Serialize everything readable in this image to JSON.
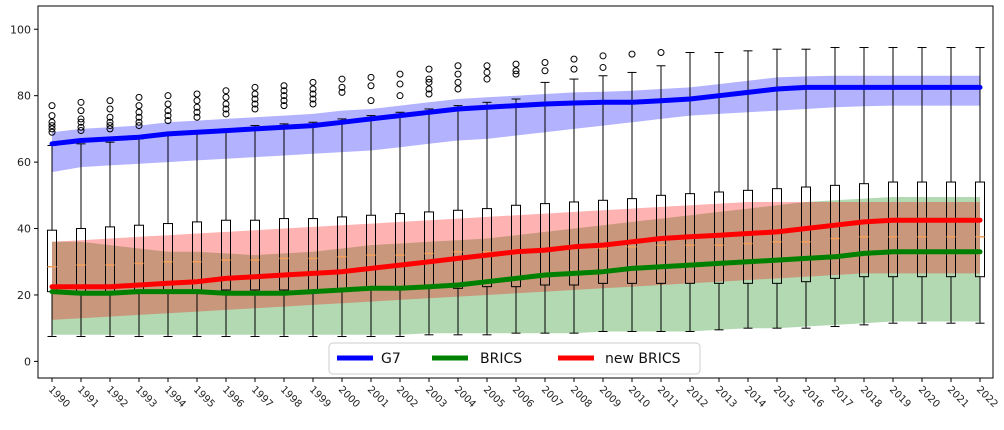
{
  "chart_data": {
    "type": "line",
    "title": "",
    "xlabel": "",
    "ylabel": "",
    "ylim": [
      -5,
      107
    ],
    "yticks": [
      0,
      20,
      40,
      60,
      80,
      100
    ],
    "x": [
      "1990",
      "1991",
      "1992",
      "1993",
      "1994",
      "1995",
      "1996",
      "1997",
      "1998",
      "1999",
      "2000",
      "2001",
      "2002",
      "2003",
      "2004",
      "2005",
      "2006",
      "2007",
      "2008",
      "2009",
      "2010",
      "2011",
      "2012",
      "2013",
      "2014",
      "2015",
      "2016",
      "2017",
      "2018",
      "2019",
      "2020",
      "2021",
      "2022"
    ],
    "grid": false,
    "legend": {
      "placement": "bottom-center"
    },
    "series": [
      {
        "name": "G7",
        "color": "#0000ff",
        "values": [
          65.5,
          66.5,
          67,
          67.5,
          68.5,
          69,
          69.5,
          70,
          70.5,
          71,
          72,
          73,
          74,
          75,
          76,
          76.5,
          77,
          77.5,
          77.8,
          78,
          78,
          78.5,
          79,
          80,
          81,
          82,
          82.5,
          82.5,
          82.5,
          82.5,
          82.5,
          82.5,
          82.5
        ],
        "band_low": [
          57,
          58.5,
          59,
          59.5,
          60,
          60.5,
          61,
          61.5,
          62,
          62.5,
          63,
          63.5,
          64.5,
          65.5,
          66.5,
          67,
          68,
          69,
          70,
          71,
          72,
          73,
          74,
          74.5,
          75,
          75.5,
          76,
          76.5,
          76.8,
          77,
          77,
          77,
          77
        ],
        "band_high": [
          69,
          70,
          70.5,
          71,
          72,
          72.5,
          73,
          73.5,
          74,
          74.5,
          75.5,
          76,
          77,
          78,
          79,
          79.5,
          80,
          80.5,
          81,
          81.2,
          81.5,
          82,
          82.5,
          83.5,
          84.5,
          85.5,
          85.8,
          86,
          86,
          86,
          86,
          86,
          86
        ]
      },
      {
        "name": "BRICS",
        "color": "#008000",
        "values": [
          21,
          20.5,
          20.5,
          21,
          21,
          21,
          20.5,
          20.5,
          20.5,
          21,
          21.5,
          22,
          22,
          22.5,
          23,
          24,
          25,
          26,
          26.5,
          27,
          28,
          28.5,
          29,
          29.5,
          30,
          30.5,
          31,
          31.5,
          32.5,
          33,
          33,
          33,
          33
        ],
        "band_low": [
          8,
          8,
          8,
          8,
          8,
          8,
          8,
          8,
          8,
          8,
          8,
          8,
          8,
          8.5,
          8.5,
          8.5,
          8.5,
          8.5,
          8.5,
          9,
          9,
          9,
          9,
          9.5,
          10,
          10,
          10.5,
          11,
          11.5,
          12,
          12,
          12,
          12
        ],
        "band_high": [
          36,
          36,
          35,
          34,
          33,
          33,
          32.5,
          32,
          32.5,
          33,
          34,
          35,
          35.5,
          36,
          36.5,
          37,
          38,
          39,
          40,
          41,
          42,
          43,
          44,
          45,
          46,
          47,
          48,
          48.5,
          49,
          49.5,
          49.5,
          49.5,
          49.5
        ]
      },
      {
        "name": "new BRICS",
        "color": "#ff0000",
        "values": [
          22.5,
          22.5,
          22.5,
          23,
          23.5,
          24,
          25,
          25.5,
          26,
          26.5,
          27,
          28,
          29,
          30,
          31,
          32,
          33,
          33.5,
          34.5,
          35,
          36,
          37,
          37.5,
          38,
          38.5,
          39,
          40,
          41,
          42,
          42.5,
          42.5,
          42.5,
          42.5
        ],
        "band_low": [
          12.5,
          13,
          13.5,
          14,
          14.5,
          15,
          15.5,
          16,
          16.5,
          17,
          17.5,
          18,
          18.5,
          19,
          19.5,
          20,
          20.5,
          21,
          21.5,
          22,
          22.5,
          23,
          23.5,
          24,
          24.5,
          25,
          25.5,
          26,
          26.5,
          26.5,
          26.5,
          26.5,
          26.5
        ],
        "band_high": [
          36,
          36.5,
          37,
          37.5,
          38,
          38.5,
          39,
          39.5,
          40,
          40.5,
          41,
          41.5,
          42,
          42.5,
          43,
          43.5,
          44,
          44.5,
          45,
          45.5,
          46,
          46.5,
          47,
          47.5,
          48,
          48,
          48,
          48,
          48,
          48,
          48,
          48,
          48
        ]
      }
    ],
    "boxplots": [
      {
        "x": "1990",
        "whisker_low": 7.5,
        "q1": 21,
        "median": 28.5,
        "q3": 39.5,
        "whisker_high": 65,
        "outliers": [
          69,
          70,
          71,
          72,
          74,
          77
        ]
      },
      {
        "x": "1991",
        "whisker_low": 7.5,
        "q1": 21,
        "median": 29,
        "q3": 40,
        "whisker_high": 65.5,
        "outliers": [
          69.5,
          70.5,
          72,
          73,
          75.5,
          78
        ]
      },
      {
        "x": "1992",
        "whisker_low": 7.5,
        "q1": 21,
        "median": 29,
        "q3": 40.5,
        "whisker_high": 66,
        "outliers": [
          70,
          71,
          72,
          73.5,
          76,
          78.5
        ]
      },
      {
        "x": "1993",
        "whisker_low": 7.5,
        "q1": 21,
        "median": 29.5,
        "q3": 41,
        "whisker_high": 67,
        "outliers": [
          71,
          72,
          73.5,
          75,
          77,
          79.5
        ]
      },
      {
        "x": "1994",
        "whisker_low": 7.5,
        "q1": 21,
        "median": 30,
        "q3": 41.5,
        "whisker_high": 68,
        "outliers": [
          72.5,
          74,
          75.5,
          77.5,
          80
        ]
      },
      {
        "x": "1995",
        "whisker_low": 7.5,
        "q1": 21.5,
        "median": 30,
        "q3": 42,
        "whisker_high": 69,
        "outliers": [
          73.5,
          75,
          76.5,
          78.5,
          80.5
        ]
      },
      {
        "x": "1996",
        "whisker_low": 7.5,
        "q1": 21.5,
        "median": 30.5,
        "q3": 42.5,
        "whisker_high": 70,
        "outliers": [
          74.5,
          76,
          77.5,
          79.5,
          81.5
        ]
      },
      {
        "x": "1997",
        "whisker_low": 7.5,
        "q1": 21.5,
        "median": 30.5,
        "q3": 42.5,
        "whisker_high": 71,
        "outliers": [
          76,
          77.5,
          79,
          80.5,
          82.5
        ]
      },
      {
        "x": "1998",
        "whisker_low": 7.5,
        "q1": 21.5,
        "median": 31,
        "q3": 43,
        "whisker_high": 71.5,
        "outliers": [
          77,
          78.5,
          80,
          81.5,
          83
        ]
      },
      {
        "x": "1999",
        "whisker_low": 7.5,
        "q1": 21.5,
        "median": 31,
        "q3": 43,
        "whisker_high": 72,
        "outliers": [
          77.5,
          79,
          80.5,
          82,
          84
        ]
      },
      {
        "x": "2000",
        "whisker_low": 7.5,
        "q1": 22,
        "median": 31.5,
        "q3": 43.5,
        "whisker_high": 73,
        "outliers": [
          81,
          82.5,
          85
        ]
      },
      {
        "x": "2001",
        "whisker_low": 7.5,
        "q1": 22,
        "median": 32,
        "q3": 44,
        "whisker_high": 74,
        "outliers": [
          78.5,
          83,
          85.5
        ]
      },
      {
        "x": "2002",
        "whisker_low": 7.5,
        "q1": 22,
        "median": 32,
        "q3": 44.5,
        "whisker_high": 75,
        "outliers": [
          80,
          83.5,
          86.5
        ]
      },
      {
        "x": "2003",
        "whisker_low": 8,
        "q1": 22,
        "median": 32.5,
        "q3": 45,
        "whisker_high": 76,
        "outliers": [
          80.5,
          82,
          84,
          85,
          88
        ]
      },
      {
        "x": "2004",
        "whisker_low": 8,
        "q1": 22,
        "median": 33,
        "q3": 45.5,
        "whisker_high": 77,
        "outliers": [
          82,
          84,
          86.5,
          89
        ]
      },
      {
        "x": "2005",
        "whisker_low": 8,
        "q1": 22.5,
        "median": 33,
        "q3": 46,
        "whisker_high": 78,
        "outliers": [
          85,
          87,
          89
        ]
      },
      {
        "x": "2006",
        "whisker_low": 8.5,
        "q1": 22.5,
        "median": 33.5,
        "q3": 47,
        "whisker_high": 79,
        "outliers": [
          86.5,
          87.5,
          89.5
        ]
      },
      {
        "x": "2007",
        "whisker_low": 8.5,
        "q1": 23,
        "median": 33.5,
        "q3": 47.5,
        "whisker_high": 84,
        "outliers": [
          87.5,
          90
        ]
      },
      {
        "x": "2008",
        "whisker_low": 8.5,
        "q1": 23,
        "median": 34,
        "q3": 48,
        "whisker_high": 85,
        "outliers": [
          88,
          91
        ]
      },
      {
        "x": "2009",
        "whisker_low": 9,
        "q1": 23.5,
        "median": 34,
        "q3": 48.5,
        "whisker_high": 86,
        "outliers": [
          88.5,
          92
        ]
      },
      {
        "x": "2010",
        "whisker_low": 9,
        "q1": 23.5,
        "median": 34.5,
        "q3": 49,
        "whisker_high": 87,
        "outliers": [
          92.5
        ]
      },
      {
        "x": "2011",
        "whisker_low": 9,
        "q1": 23.5,
        "median": 35,
        "q3": 50,
        "whisker_high": 89,
        "outliers": [
          93
        ]
      },
      {
        "x": "2012",
        "whisker_low": 9,
        "q1": 23.5,
        "median": 35,
        "q3": 50.5,
        "whisker_high": 93,
        "outliers": []
      },
      {
        "x": "2013",
        "whisker_low": 9.5,
        "q1": 23.5,
        "median": 35,
        "q3": 51,
        "whisker_high": 93,
        "outliers": []
      },
      {
        "x": "2014",
        "whisker_low": 10,
        "q1": 23.5,
        "median": 35.5,
        "q3": 51.5,
        "whisker_high": 93.5,
        "outliers": []
      },
      {
        "x": "2015",
        "whisker_low": 10,
        "q1": 23.5,
        "median": 36,
        "q3": 52,
        "whisker_high": 94,
        "outliers": []
      },
      {
        "x": "2016",
        "whisker_low": 10,
        "q1": 24,
        "median": 36,
        "q3": 52.5,
        "whisker_high": 94,
        "outliers": []
      },
      {
        "x": "2017",
        "whisker_low": 10.5,
        "q1": 25,
        "median": 37,
        "q3": 53,
        "whisker_high": 94.5,
        "outliers": []
      },
      {
        "x": "2018",
        "whisker_low": 11,
        "q1": 25.5,
        "median": 37.5,
        "q3": 53.5,
        "whisker_high": 94.5,
        "outliers": []
      },
      {
        "x": "2019",
        "whisker_low": 11.5,
        "q1": 25.5,
        "median": 37.5,
        "q3": 54,
        "whisker_high": 94.5,
        "outliers": []
      },
      {
        "x": "2020",
        "whisker_low": 11.5,
        "q1": 25.5,
        "median": 37.5,
        "q3": 54,
        "whisker_high": 94.5,
        "outliers": []
      },
      {
        "x": "2021",
        "whisker_low": 11.5,
        "q1": 25.5,
        "median": 37.5,
        "q3": 54,
        "whisker_high": 94.5,
        "outliers": []
      },
      {
        "x": "2022",
        "whisker_low": 11.5,
        "q1": 25.5,
        "median": 37.5,
        "q3": 54,
        "whisker_high": 94.5,
        "outliers": []
      }
    ],
    "band_colors": {
      "G7": "#0000ff",
      "BRICS": "#008000",
      "new BRICS": "#ff0000"
    },
    "median_color": "#f5a05a"
  }
}
